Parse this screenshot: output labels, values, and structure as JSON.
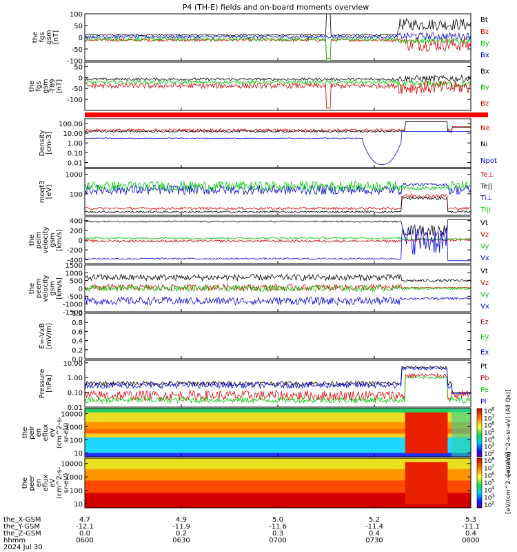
{
  "chart_data": {
    "type": "line",
    "title": "P4 (TH-E) fields and on-board moments overview",
    "date": "2024 Jul 30",
    "x_tick_labels": [
      "0600",
      "0630",
      "0700",
      "0730",
      "0800"
    ],
    "x_range": [
      "0600",
      "0800"
    ],
    "ephemeris": {
      "labels": [
        "the_X-GSM",
        "the_Y-GSM",
        "the_Z-GSM",
        "hhmm"
      ],
      "rows": [
        [
          "4.7",
          "4.9",
          "5.0",
          "5.2",
          "5.3"
        ],
        [
          "-12.1",
          "-11.9",
          "-11.6",
          "-11.4",
          "-11.1"
        ],
        [
          "0.0",
          "0.2",
          "0.3",
          "0.4",
          "0.4"
        ]
      ]
    },
    "panels": [
      {
        "id": "fgs_gsm",
        "ylabel": [
          "the",
          "fgs",
          "gsm",
          "[nT]"
        ],
        "yticks": [
          "100",
          "50",
          "0",
          "-50",
          "-100"
        ],
        "ylim": [
          -100,
          100
        ],
        "scale": "linear",
        "legend": [
          "Bt",
          "Bz",
          "By",
          "Bx"
        ],
        "legend_colors": [
          "#000000",
          "#d40000",
          "#00c800",
          "#0000d4"
        ]
      },
      {
        "id": "fgs_gsm_t89",
        "ylabel": [
          "the",
          "fgs",
          "gsm",
          "-T89",
          "[nT]"
        ],
        "yticks": [
          "50",
          "0",
          "-50",
          "-100"
        ],
        "ylim": [
          -150,
          70
        ],
        "scale": "linear",
        "legend": [
          "Bx",
          "By",
          "Bz"
        ],
        "legend_colors": [
          "#000000",
          "#00c800",
          "#d40000"
        ]
      },
      {
        "id": "density",
        "ylabel": [
          "Density",
          "[cm-3]"
        ],
        "yticks": [
          "100.00",
          "10.00",
          "1.00",
          "0.10",
          "0.01"
        ],
        "ylim": [
          0.003,
          300
        ],
        "scale": "log",
        "legend": [
          "Ne",
          "Ni",
          "Npot"
        ],
        "legend_colors": [
          "#d40000",
          "#000000",
          "#0000d4"
        ]
      },
      {
        "id": "temperature",
        "ylabel": [
          "moqt3",
          "[eV]"
        ],
        "yticks": [
          "1000",
          "100"
        ],
        "ylim": [
          8,
          2000
        ],
        "scale": "log",
        "legend": [
          "Te⊥",
          "Te||",
          "Ti⊥",
          "Ti||"
        ],
        "legend_colors": [
          "#d40000",
          "#000000",
          "#0000d4",
          "#00c800"
        ]
      },
      {
        "id": "peim_velocity",
        "ylabel": [
          "the",
          "peim",
          "velocity",
          "gsm",
          "[km/s]"
        ],
        "yticks": [
          "400",
          "200",
          "0",
          "-200",
          "-400"
        ],
        "ylim": [
          -480,
          480
        ],
        "scale": "linear",
        "legend": [
          "Vt",
          "Vz",
          "Vy",
          "Vx"
        ],
        "legend_colors": [
          "#000000",
          "#d40000",
          "#00c800",
          "#0000d4"
        ]
      },
      {
        "id": "peem_velocity",
        "ylabel": [
          "the",
          "peem",
          "velocity",
          "gsm",
          "[km/s]"
        ],
        "yticks": [
          "1500",
          "1000",
          "500",
          "0",
          "-500",
          "-1000",
          "-1500"
        ],
        "ylim": [
          -1500,
          1500
        ],
        "scale": "linear",
        "legend": [
          "Vt",
          "Vz",
          "Vy",
          "Vx"
        ],
        "legend_colors": [
          "#000000",
          "#d40000",
          "#00c800",
          "#0000d4"
        ]
      },
      {
        "id": "efield",
        "ylabel": [
          "E=-VxB",
          "[mV/m]"
        ],
        "yticks": [
          "1.0",
          "0.8",
          "0.6",
          "0.4",
          "0.2",
          "0.0"
        ],
        "ylim": [
          0,
          1
        ],
        "scale": "linear",
        "legend": [
          "Ez",
          "Ey",
          "Ex"
        ],
        "legend_colors": [
          "#d40000",
          "#00c800",
          "#0000d4"
        ]
      },
      {
        "id": "pressure",
        "ylabel": [
          "Pressure",
          "[nPa]"
        ],
        "yticks": [
          "10.00",
          "1.00",
          "0.10",
          "0.01"
        ],
        "ylim": [
          0.01,
          15
        ],
        "scale": "log",
        "legend": [
          "Pt",
          "Pb",
          "Pe",
          "Pi"
        ],
        "legend_colors": [
          "#000000",
          "#d40000",
          "#00c800",
          "#0000d4"
        ]
      },
      {
        "id": "peir_eflux",
        "type": "heatmap",
        "ylabel": [
          "the",
          "peir",
          "en",
          "eflux",
          "eV",
          "(cm^2-s-",
          "sr-eV)"
        ],
        "yticks": [
          "10000",
          "1000",
          "100",
          "10"
        ],
        "ylim": [
          5,
          25000
        ],
        "scale": "log"
      },
      {
        "id": "peer_eflux",
        "type": "heatmap",
        "ylabel": [
          "the",
          "peer",
          "en",
          "eflux",
          "eV",
          "(cm^2-s-",
          "sr-eV)"
        ],
        "yticks": [
          "10000",
          "1000",
          "100",
          "10"
        ],
        "ylim": [
          5,
          25000
        ],
        "scale": "log"
      }
    ],
    "colorbars": [
      {
        "label": "eV/(cm^2-s-sr-eV) (All Qs)",
        "tick_exponents": [
          "8",
          "7",
          "6",
          "5",
          "4",
          "3",
          "2"
        ]
      },
      {
        "label": "eV/(cm^2-s-sr-eV)",
        "tick_exponents": [
          "8",
          "7",
          "6",
          "5",
          "4",
          "3",
          "2"
        ]
      }
    ]
  }
}
